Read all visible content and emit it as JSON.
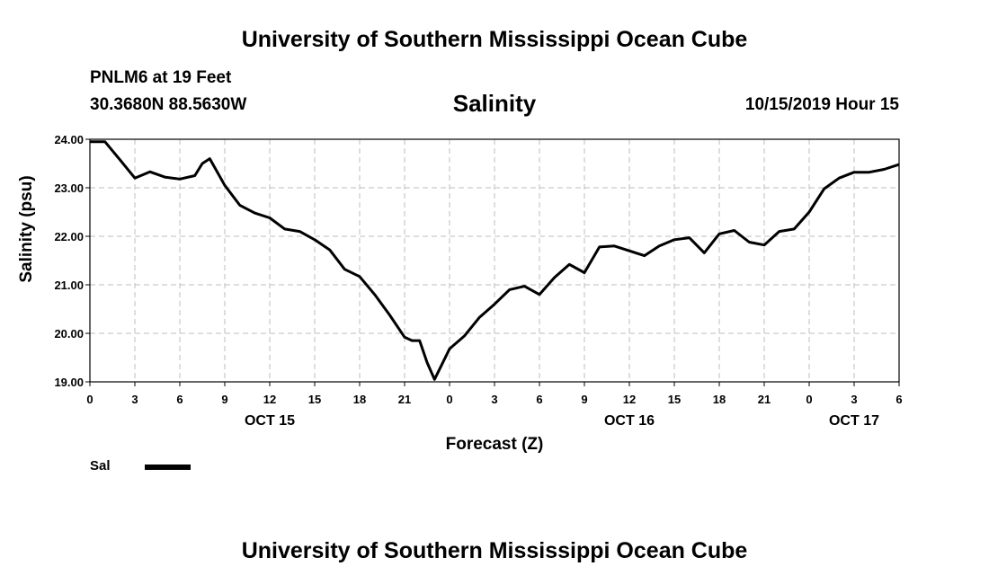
{
  "header": {
    "title": "University of Southern Mississippi Ocean Cube",
    "station": "PNLM6 at 19 Feet",
    "coords": "30.3680N 88.5630W",
    "parameter": "Salinity",
    "datetime": "10/15/2019 Hour 15"
  },
  "footer": {
    "title": "University of Southern Mississippi Ocean Cube"
  },
  "legend": {
    "label": "Sal",
    "color": "#000000"
  },
  "chart_data": {
    "type": "line",
    "title": "Salinity",
    "xlabel": "Forecast (Z)",
    "ylabel": "Salinity (psu)",
    "ylim": [
      19,
      24
    ],
    "xlim_hours": [
      0,
      54
    ],
    "grid": true,
    "y_ticks": [
      "19.00",
      "20.00",
      "21.00",
      "22.00",
      "23.00",
      "24.00"
    ],
    "x_tick_labels": [
      "0",
      "3",
      "6",
      "9",
      "12",
      "15",
      "18",
      "21",
      "0",
      "3",
      "6",
      "9",
      "12",
      "15",
      "18",
      "21",
      "0",
      "3",
      "6"
    ],
    "day_labels": [
      {
        "label": "OCT 15",
        "hour": 12
      },
      {
        "label": "OCT 16",
        "hour": 36
      },
      {
        "label": "OCT 17",
        "hour": 51
      }
    ],
    "series": [
      {
        "name": "Sal",
        "x": [
          0,
          1,
          2,
          3,
          4,
          5,
          6,
          7,
          7.5,
          8,
          9,
          10,
          11,
          12,
          13,
          14,
          15,
          16,
          17,
          18,
          19,
          20,
          21,
          21.5,
          22,
          22.5,
          23,
          24,
          25,
          26,
          27,
          28,
          29,
          30,
          31,
          32,
          33,
          34,
          35,
          36,
          37,
          38,
          39,
          40,
          41,
          42,
          43,
          44,
          45,
          46,
          47,
          48,
          49,
          50,
          51,
          52,
          53,
          54
        ],
        "values": [
          23.95,
          23.95,
          23.58,
          23.2,
          23.33,
          23.22,
          23.18,
          23.25,
          23.5,
          23.6,
          23.05,
          22.64,
          22.48,
          22.38,
          22.15,
          22.1,
          21.93,
          21.72,
          21.32,
          21.17,
          20.8,
          20.38,
          19.92,
          19.85,
          19.85,
          19.4,
          19.05,
          19.68,
          19.95,
          20.33,
          20.6,
          20.9,
          20.97,
          20.8,
          21.15,
          21.42,
          21.25,
          21.78,
          21.8,
          21.7,
          21.6,
          21.8,
          21.93,
          21.97,
          21.66,
          22.05,
          22.12,
          21.88,
          21.82,
          22.1,
          22.15,
          22.5,
          22.98,
          23.2,
          23.32,
          23.32,
          23.38,
          23.48
        ]
      }
    ]
  }
}
